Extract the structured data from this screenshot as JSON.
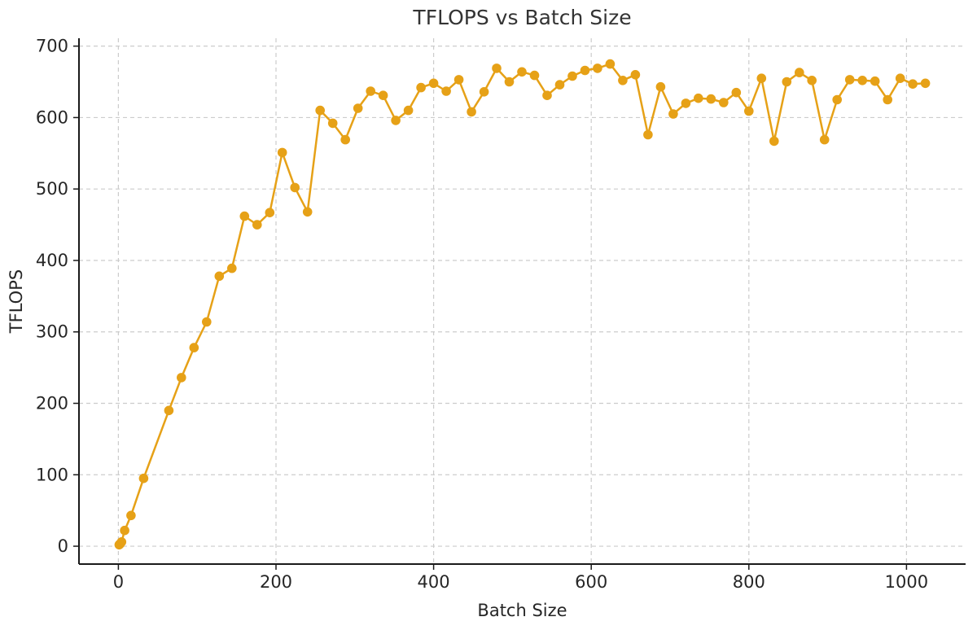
{
  "chart_data": {
    "type": "line",
    "title": "TFLOPS vs Batch Size",
    "xlabel": "Batch Size",
    "ylabel": "TFLOPS",
    "x": [
      1,
      2,
      4,
      8,
      16,
      32,
      64,
      80,
      96,
      112,
      128,
      144,
      160,
      176,
      192,
      208,
      224,
      240,
      256,
      272,
      288,
      304,
      320,
      336,
      352,
      368,
      384,
      400,
      416,
      432,
      448,
      464,
      480,
      496,
      512,
      528,
      544,
      560,
      576,
      592,
      608,
      624,
      640,
      656,
      672,
      688,
      704,
      720,
      736,
      752,
      768,
      784,
      800,
      816,
      832,
      848,
      864,
      880,
      896,
      912,
      928,
      944,
      960,
      976,
      992,
      1008,
      1024
    ],
    "y": [
      2,
      3,
      6,
      22,
      43,
      95,
      190,
      236,
      278,
      314,
      378,
      389,
      462,
      450,
      467,
      551,
      502,
      468,
      610,
      592,
      569,
      613,
      637,
      631,
      596,
      610,
      642,
      648,
      637,
      653,
      608,
      636,
      669,
      650,
      664,
      659,
      631,
      646,
      658,
      666,
      669,
      675,
      652,
      660,
      576,
      643,
      605,
      620,
      627,
      626,
      621,
      635,
      609,
      655,
      567,
      650,
      663,
      652,
      569,
      625,
      653,
      652,
      651,
      625,
      655,
      647,
      648
    ],
    "xticks": [
      0,
      200,
      400,
      600,
      800,
      1000
    ],
    "yticks": [
      0,
      100,
      200,
      300,
      400,
      500,
      600,
      700
    ],
    "xlim": [
      -50,
      1075
    ],
    "ylim": [
      -25,
      711
    ],
    "grid": "both-dashed",
    "legend": "none",
    "series_name": "TFLOPS",
    "colors": {
      "line": "#E6A117",
      "marker": "#E6A117",
      "grid": "#cccccc",
      "spine": "#1a1a1a",
      "text": "#262626",
      "title_text": "#333333",
      "background": "#ffffff"
    }
  }
}
